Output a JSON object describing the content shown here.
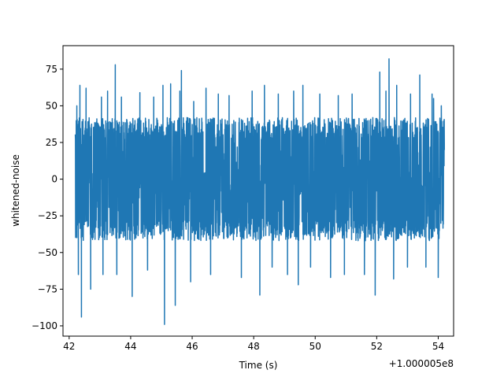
{
  "chart_data": {
    "type": "line",
    "title": "",
    "xlabel": "Time (s)",
    "ylabel": "whitened-noise",
    "x_offset_text": "+1.000005e8",
    "xlim": [
      41.8,
      54.5
    ],
    "ylim": [
      -107,
      91
    ],
    "x_ticks": [
      42,
      44,
      46,
      48,
      50,
      52,
      54
    ],
    "x_tick_labels": [
      "42",
      "44",
      "46",
      "48",
      "50",
      "52",
      "54"
    ],
    "y_ticks": [
      75,
      50,
      25,
      0,
      -25,
      -50,
      -75,
      -100
    ],
    "y_tick_labels": [
      "75",
      "50",
      "25",
      "0",
      "−25",
      "−50",
      "−75",
      "−100"
    ],
    "grid": false,
    "legend": "none",
    "series": [
      {
        "color": "#1f77b4",
        "x_start": 42.2,
        "x_end": 54.2,
        "typical_band": [
          -40,
          40
        ],
        "spikes": [
          [
            42.25,
            50
          ],
          [
            42.3,
            -65
          ],
          [
            42.35,
            64
          ],
          [
            42.4,
            -94
          ],
          [
            42.55,
            62
          ],
          [
            42.7,
            -75
          ],
          [
            43.05,
            56
          ],
          [
            43.1,
            -65
          ],
          [
            43.25,
            60
          ],
          [
            43.5,
            78
          ],
          [
            43.55,
            -65
          ],
          [
            43.7,
            56
          ],
          [
            44.05,
            -80
          ],
          [
            44.3,
            59
          ],
          [
            44.55,
            -62
          ],
          [
            44.75,
            56
          ],
          [
            45.05,
            64
          ],
          [
            45.1,
            -99
          ],
          [
            45.3,
            65
          ],
          [
            45.45,
            -86
          ],
          [
            45.6,
            60
          ],
          [
            45.65,
            74
          ],
          [
            45.95,
            -70
          ],
          [
            46.05,
            53
          ],
          [
            46.45,
            62
          ],
          [
            46.6,
            -65
          ],
          [
            46.85,
            58
          ],
          [
            47.2,
            57
          ],
          [
            47.6,
            -67
          ],
          [
            47.95,
            60
          ],
          [
            48.2,
            -79
          ],
          [
            48.35,
            64
          ],
          [
            48.6,
            -60
          ],
          [
            48.8,
            58
          ],
          [
            49.1,
            -65
          ],
          [
            49.3,
            60
          ],
          [
            49.45,
            -72
          ],
          [
            49.6,
            64
          ],
          [
            49.85,
            -60
          ],
          [
            50.15,
            58
          ],
          [
            50.5,
            -67
          ],
          [
            50.75,
            57
          ],
          [
            50.95,
            -65
          ],
          [
            51.2,
            58
          ],
          [
            51.6,
            -65
          ],
          [
            51.95,
            -79
          ],
          [
            52.1,
            73
          ],
          [
            52.3,
            60
          ],
          [
            52.4,
            82
          ],
          [
            52.55,
            -68
          ],
          [
            52.65,
            64
          ],
          [
            53.0,
            -60
          ],
          [
            53.1,
            58
          ],
          [
            53.4,
            71
          ],
          [
            53.6,
            -60
          ],
          [
            53.8,
            58
          ],
          [
            53.85,
            55
          ],
          [
            54.0,
            -67
          ],
          [
            54.1,
            50
          ]
        ]
      }
    ]
  }
}
